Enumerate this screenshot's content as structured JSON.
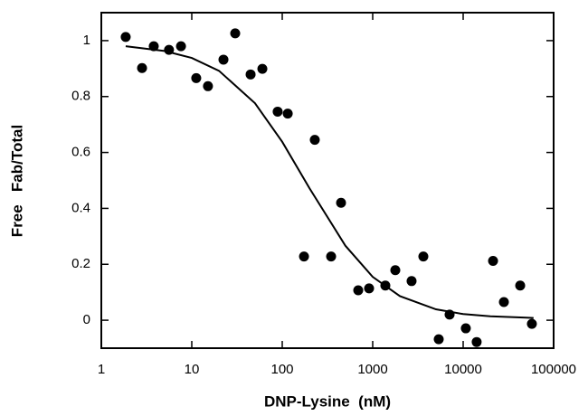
{
  "chart_data": {
    "type": "scatter",
    "xlabel": "DNP-Lysine  (nM)",
    "ylabel": "Free   Fab/Total",
    "xscale": "log",
    "xlim": [
      1,
      100000
    ],
    "xticks": [
      1,
      10,
      100,
      1000,
      10000,
      100000
    ],
    "ylim": [
      -0.1,
      1.1
    ],
    "yticks": [
      0,
      0.2,
      0.4,
      0.6,
      0.8,
      1
    ],
    "grid": false,
    "series": [
      {
        "type": "scatter",
        "color": "#000000",
        "x": [
          1.86,
          2.82,
          3.8,
          5.6,
          7.6,
          11.2,
          15.1,
          22.4,
          30.2,
          44.7,
          60.3,
          89,
          115,
          174,
          229,
          347,
          447,
          692,
          912,
          1380,
          1778,
          2690,
          3630,
          5370,
          7080,
          10700,
          14100,
          21400,
          28200,
          42700,
          57500
        ],
        "values": [
          1.013,
          0.902,
          0.98,
          0.967,
          0.98,
          0.866,
          0.837,
          0.932,
          1.026,
          0.879,
          0.899,
          0.746,
          0.739,
          0.228,
          0.645,
          0.228,
          0.42,
          0.107,
          0.114,
          0.124,
          0.179,
          0.14,
          0.228,
          -0.068,
          0.02,
          -0.029,
          -0.078,
          0.212,
          0.065,
          0.124,
          -0.013
        ]
      },
      {
        "type": "line",
        "color": "#000000",
        "x": [
          1.86,
          5,
          10,
          20,
          50,
          100,
          200,
          500,
          1000,
          2000,
          5000,
          10000,
          20000,
          50000,
          60000
        ],
        "values": [
          0.98,
          0.963,
          0.938,
          0.892,
          0.776,
          0.638,
          0.472,
          0.266,
          0.155,
          0.086,
          0.039,
          0.022,
          0.014,
          0.009,
          0.008
        ]
      }
    ]
  }
}
